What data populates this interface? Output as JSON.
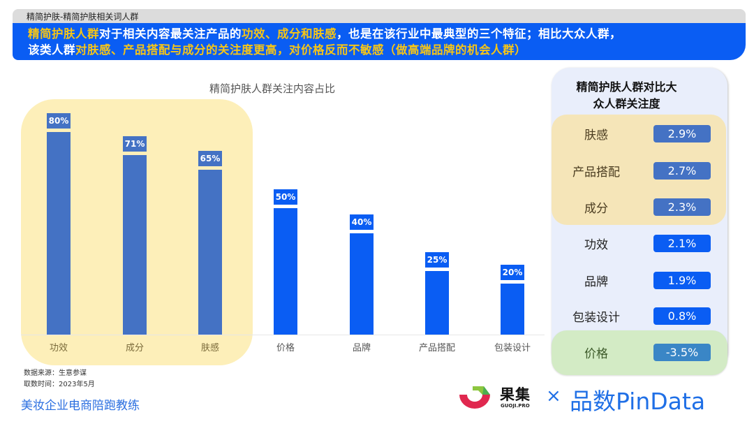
{
  "header": {
    "breadcrumb": "精简护肤-精简护肤相关词人群",
    "line1": [
      {
        "text": "精简护肤人群",
        "highlight": true
      },
      {
        "text": "对于相关内容最关注产品的",
        "highlight": false
      },
      {
        "text": "功效、成分和肤感",
        "highlight": true
      },
      {
        "text": "，也是在该行业中最典型的三个特征；相比大众人群，",
        "highlight": false
      }
    ],
    "line2": [
      {
        "text": "该类人群",
        "highlight": false
      },
      {
        "text": "对肤感、产品搭配与成分的关注度更高，对价格反而不敏感（做高端品牌的机会人群）",
        "highlight": true
      }
    ]
  },
  "chart_data": [
    {
      "type": "bar",
      "title": "精简护肤人群关注内容占比",
      "categories": [
        "功效",
        "成分",
        "肤感",
        "价格",
        "品牌",
        "产品搭配",
        "包装设计"
      ],
      "values": [
        80,
        71,
        65,
        50,
        40,
        25,
        20
      ],
      "value_labels": [
        "80%",
        "71%",
        "65%",
        "50%",
        "40%",
        "25%",
        "20%"
      ],
      "highlighted_categories": [
        "功效",
        "成分",
        "肤感"
      ],
      "xlabel": "",
      "ylabel": "",
      "ylim": [
        0,
        100
      ],
      "grid": false,
      "colors": {
        "highlighted": "#4472c4",
        "normal": "#0a5df3",
        "highlight_bg": "#fdefb9"
      }
    },
    {
      "type": "table",
      "title": "精简护肤人群对比大众人群关注度",
      "categories": [
        "肤感",
        "产品搭配",
        "成分",
        "功效",
        "品牌",
        "包装设计",
        "价格"
      ],
      "values": [
        2.9,
        2.7,
        2.3,
        2.1,
        1.9,
        0.8,
        -3.5
      ],
      "value_labels": [
        "2.9%",
        "2.7%",
        "2.3%",
        "2.1%",
        "1.9%",
        "0.8%",
        "-3.5%"
      ]
    }
  ],
  "chart": {
    "title": "精简护肤人群关注内容占比",
    "bars": [
      {
        "label": "功效",
        "value": "80%",
        "pct": 80,
        "group": "warm"
      },
      {
        "label": "成分",
        "value": "71%",
        "pct": 71,
        "group": "warm"
      },
      {
        "label": "肤感",
        "value": "65%",
        "pct": 65,
        "group": "warm"
      },
      {
        "label": "价格",
        "value": "50%",
        "pct": 50,
        "group": "normal"
      },
      {
        "label": "品牌",
        "value": "40%",
        "pct": 40,
        "group": "normal"
      },
      {
        "label": "产品搭配",
        "value": "25%",
        "pct": 25,
        "group": "normal"
      },
      {
        "label": "包装设计",
        "value": "20%",
        "pct": 20,
        "group": "normal"
      }
    ]
  },
  "panel": {
    "title_line1": "精简护肤人群对比大",
    "title_line2": "众人群关注度",
    "rows": [
      {
        "label": "肤感",
        "value": "2.9%",
        "group": "warm"
      },
      {
        "label": "产品搭配",
        "value": "2.7%",
        "group": "warm"
      },
      {
        "label": "成分",
        "value": "2.3%",
        "group": "warm"
      },
      {
        "label": "功效",
        "value": "2.1%",
        "group": "normal"
      },
      {
        "label": "品牌",
        "value": "1.9%",
        "group": "normal"
      },
      {
        "label": "包装设计",
        "value": "0.8%",
        "group": "normal"
      },
      {
        "label": "价格",
        "value": "-3.5%",
        "group": "green"
      }
    ]
  },
  "footer": {
    "source": "数据来源：生意参谋",
    "date": "取数时间：2023年5月",
    "brand": "美妆企业电商陪跑教练",
    "logo_guoji_cn": "果集",
    "logo_guoji_en": "GUOJI.PRO",
    "times": "×",
    "logo_pindata": "品数PinData"
  },
  "colors": {
    "header_blue": "#0a5df3",
    "highlight_yellow": "#f5c518",
    "bar_warm": "#4472c4",
    "bar_normal": "#0a5df3",
    "value_warm": "#4472c4",
    "value_normal": "#0a5df3",
    "value_green": "#3a86c6"
  }
}
